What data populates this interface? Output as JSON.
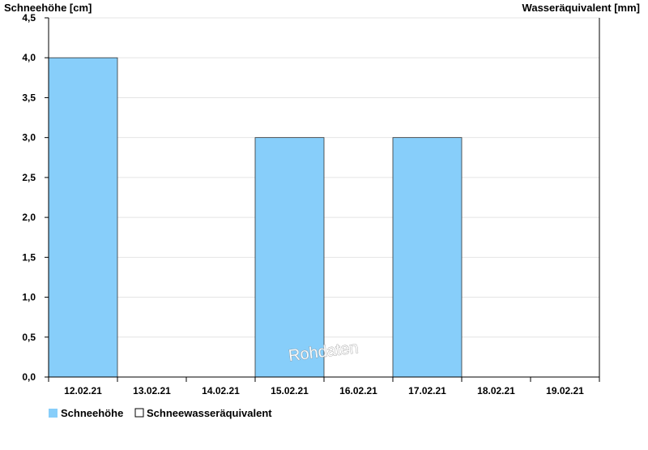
{
  "chart_data": {
    "type": "bar",
    "categories": [
      "12.02.21",
      "13.02.21",
      "14.02.21",
      "15.02.21",
      "16.02.21",
      "17.02.21",
      "18.02.21",
      "19.02.21"
    ],
    "series": [
      {
        "name": "Schneehöhe",
        "values": [
          4.0,
          0,
          0,
          3.0,
          0,
          3.0,
          0,
          0
        ],
        "color": "#87cefa"
      },
      {
        "name": "Schneewasseräquivalent",
        "values": [
          null,
          null,
          null,
          null,
          null,
          null,
          null,
          null
        ],
        "color": "#ffffff"
      }
    ],
    "ylabel_left": "Schneehöhe [cm]",
    "ylabel_right": "Wasseräquivalent [mm]",
    "ylim": [
      0,
      4.5
    ],
    "yticks": [
      "0,0",
      "0,5",
      "1,0",
      "1,5",
      "2,0",
      "2,5",
      "3,0",
      "3,5",
      "4,0",
      "4,5"
    ],
    "ytick_values": [
      0,
      0.5,
      1.0,
      1.5,
      2.0,
      2.5,
      3.0,
      3.5,
      4.0,
      4.5
    ],
    "grid": true,
    "legend_position": "bottom-left",
    "watermark": "Rohdaten"
  }
}
